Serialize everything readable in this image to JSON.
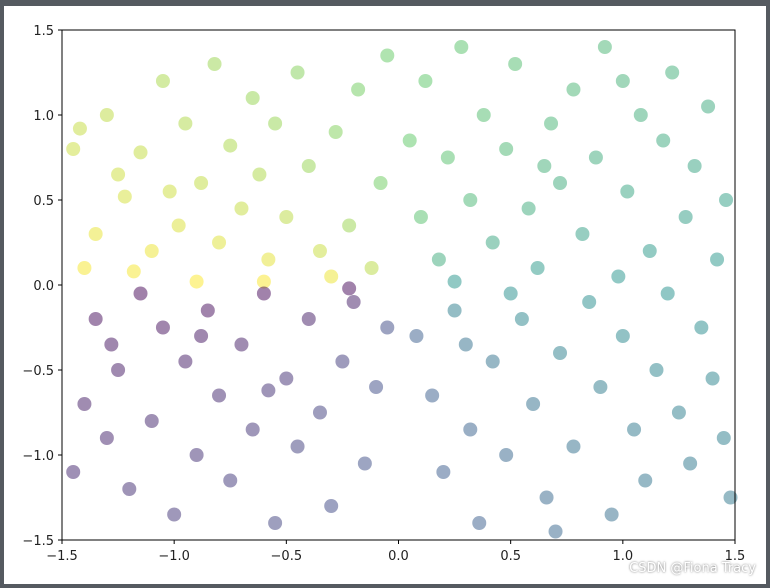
{
  "chart_data": {
    "type": "scatter",
    "title": "",
    "xlabel": "",
    "ylabel": "",
    "xlim": [
      -1.5,
      1.5
    ],
    "ylim": [
      -1.5,
      1.5
    ],
    "grid": false,
    "legend": "none",
    "marker_alpha": 0.5,
    "colormap": "viridis",
    "color_rule": "color = atan2(y, x), mapped through viridis (purple at -pi, yellow at +pi)",
    "x_ticks": [
      -1.5,
      -1.0,
      -0.5,
      0.0,
      0.5,
      1.0,
      1.5
    ],
    "x_tick_labels": [
      "−1.5",
      "−1.0",
      "−0.5",
      "0.0",
      "0.5",
      "1.0",
      "1.5"
    ],
    "y_ticks": [
      -1.5,
      -1.0,
      -0.5,
      0.0,
      0.5,
      1.0,
      1.5
    ],
    "y_tick_labels": [
      "−1.5",
      "−1.0",
      "−0.5",
      "0.0",
      "0.5",
      "1.0",
      "1.5"
    ],
    "points": [
      {
        "x": -1.45,
        "y": 0.8
      },
      {
        "x": -1.42,
        "y": 0.92
      },
      {
        "x": -1.35,
        "y": 0.3
      },
      {
        "x": -1.3,
        "y": 1.0
      },
      {
        "x": -1.22,
        "y": 0.52
      },
      {
        "x": -1.18,
        "y": 0.08
      },
      {
        "x": -1.15,
        "y": 0.78
      },
      {
        "x": -1.1,
        "y": 0.2
      },
      {
        "x": -1.05,
        "y": 1.2
      },
      {
        "x": -1.02,
        "y": 0.55
      },
      {
        "x": -0.98,
        "y": 0.35
      },
      {
        "x": -0.95,
        "y": 0.95
      },
      {
        "x": -0.9,
        "y": 0.02
      },
      {
        "x": -0.88,
        "y": 0.6
      },
      {
        "x": -0.82,
        "y": 1.3
      },
      {
        "x": -0.8,
        "y": 0.25
      },
      {
        "x": -0.75,
        "y": 0.82
      },
      {
        "x": -0.7,
        "y": 0.45
      },
      {
        "x": -0.65,
        "y": 1.1
      },
      {
        "x": -0.62,
        "y": 0.65
      },
      {
        "x": -0.58,
        "y": 0.15
      },
      {
        "x": -0.55,
        "y": 0.95
      },
      {
        "x": -0.5,
        "y": 0.4
      },
      {
        "x": -0.45,
        "y": 1.25
      },
      {
        "x": -0.4,
        "y": 0.7
      },
      {
        "x": -0.35,
        "y": 0.2
      },
      {
        "x": -0.3,
        "y": 0.05
      },
      {
        "x": -0.28,
        "y": 0.9
      },
      {
        "x": -0.22,
        "y": 0.35
      },
      {
        "x": -0.18,
        "y": 1.15
      },
      {
        "x": -0.12,
        "y": 0.1
      },
      {
        "x": -0.08,
        "y": 0.6
      },
      {
        "x": -0.05,
        "y": 1.35
      },
      {
        "x": -1.4,
        "y": 0.1
      },
      {
        "x": -1.25,
        "y": 0.65
      },
      {
        "x": -0.6,
        "y": 0.02
      },
      {
        "x": 0.05,
        "y": 0.85
      },
      {
        "x": 0.1,
        "y": 0.4
      },
      {
        "x": 0.12,
        "y": 1.2
      },
      {
        "x": 0.18,
        "y": 0.15
      },
      {
        "x": 0.22,
        "y": 0.75
      },
      {
        "x": 0.28,
        "y": 1.4
      },
      {
        "x": 0.32,
        "y": 0.5
      },
      {
        "x": 0.38,
        "y": 1.0
      },
      {
        "x": 0.42,
        "y": 0.25
      },
      {
        "x": 0.48,
        "y": 0.8
      },
      {
        "x": 0.52,
        "y": 1.3
      },
      {
        "x": 0.58,
        "y": 0.45
      },
      {
        "x": 0.62,
        "y": 0.1
      },
      {
        "x": 0.68,
        "y": 0.95
      },
      {
        "x": 0.72,
        "y": 0.6
      },
      {
        "x": 0.78,
        "y": 1.15
      },
      {
        "x": 0.82,
        "y": 0.3
      },
      {
        "x": 0.88,
        "y": 0.75
      },
      {
        "x": 0.92,
        "y": 1.4
      },
      {
        "x": 0.98,
        "y": 0.05
      },
      {
        "x": 1.02,
        "y": 0.55
      },
      {
        "x": 1.08,
        "y": 1.0
      },
      {
        "x": 1.12,
        "y": 0.2
      },
      {
        "x": 1.18,
        "y": 0.85
      },
      {
        "x": 1.22,
        "y": 1.25
      },
      {
        "x": 1.28,
        "y": 0.4
      },
      {
        "x": 1.32,
        "y": 0.7
      },
      {
        "x": 1.38,
        "y": 1.05
      },
      {
        "x": 1.42,
        "y": 0.15
      },
      {
        "x": 1.46,
        "y": 0.5
      },
      {
        "x": 0.25,
        "y": 0.02
      },
      {
        "x": 0.65,
        "y": 0.7
      },
      {
        "x": 1.0,
        "y": 1.2
      },
      {
        "x": 0.08,
        "y": -0.3
      },
      {
        "x": 0.15,
        "y": -0.65
      },
      {
        "x": 0.2,
        "y": -1.1
      },
      {
        "x": 0.25,
        "y": -0.15
      },
      {
        "x": 0.32,
        "y": -0.85
      },
      {
        "x": 0.36,
        "y": -1.4
      },
      {
        "x": 0.42,
        "y": -0.45
      },
      {
        "x": 0.48,
        "y": -1.0
      },
      {
        "x": 0.55,
        "y": -0.2
      },
      {
        "x": 0.6,
        "y": -0.7
      },
      {
        "x": 0.66,
        "y": -1.25
      },
      {
        "x": 0.72,
        "y": -0.4
      },
      {
        "x": 0.78,
        "y": -0.95
      },
      {
        "x": 0.85,
        "y": -0.1
      },
      {
        "x": 0.9,
        "y": -0.6
      },
      {
        "x": 0.95,
        "y": -1.35
      },
      {
        "x": 1.0,
        "y": -0.3
      },
      {
        "x": 1.05,
        "y": -0.85
      },
      {
        "x": 1.1,
        "y": -1.15
      },
      {
        "x": 1.15,
        "y": -0.5
      },
      {
        "x": 1.2,
        "y": -0.05
      },
      {
        "x": 1.25,
        "y": -0.75
      },
      {
        "x": 1.3,
        "y": -1.05
      },
      {
        "x": 1.35,
        "y": -0.25
      },
      {
        "x": 1.4,
        "y": -0.55
      },
      {
        "x": 1.45,
        "y": -0.9
      },
      {
        "x": 0.5,
        "y": -0.05
      },
      {
        "x": 0.3,
        "y": -0.35
      },
      {
        "x": 0.7,
        "y": -1.45
      },
      {
        "x": 1.48,
        "y": -1.25
      },
      {
        "x": -0.05,
        "y": -0.25
      },
      {
        "x": -0.1,
        "y": -0.6
      },
      {
        "x": -0.15,
        "y": -1.05
      },
      {
        "x": -0.2,
        "y": -0.1
      },
      {
        "x": -0.25,
        "y": -0.45
      },
      {
        "x": -0.3,
        "y": -1.3
      },
      {
        "x": -0.35,
        "y": -0.75
      },
      {
        "x": -0.4,
        "y": -0.2
      },
      {
        "x": -0.45,
        "y": -0.95
      },
      {
        "x": -0.5,
        "y": -0.55
      },
      {
        "x": -0.55,
        "y": -1.4
      },
      {
        "x": -0.6,
        "y": -0.05
      },
      {
        "x": -0.65,
        "y": -0.85
      },
      {
        "x": -0.7,
        "y": -0.35
      },
      {
        "x": -0.75,
        "y": -1.15
      },
      {
        "x": -0.8,
        "y": -0.65
      },
      {
        "x": -0.85,
        "y": -0.15
      },
      {
        "x": -0.9,
        "y": -1.0
      },
      {
        "x": -0.95,
        "y": -0.45
      },
      {
        "x": -1.0,
        "y": -1.35
      },
      {
        "x": -1.05,
        "y": -0.25
      },
      {
        "x": -1.1,
        "y": -0.8
      },
      {
        "x": -1.15,
        "y": -0.05
      },
      {
        "x": -1.2,
        "y": -1.2
      },
      {
        "x": -1.25,
        "y": -0.5
      },
      {
        "x": -1.3,
        "y": -0.9
      },
      {
        "x": -1.35,
        "y": -0.2
      },
      {
        "x": -1.4,
        "y": -0.7
      },
      {
        "x": -1.45,
        "y": -1.1
      },
      {
        "x": -0.22,
        "y": -0.02
      },
      {
        "x": -0.58,
        "y": -0.62
      },
      {
        "x": -0.88,
        "y": -0.3
      },
      {
        "x": -1.28,
        "y": -0.35
      }
    ]
  },
  "watermark": "CSDN @Fiona Tracy"
}
